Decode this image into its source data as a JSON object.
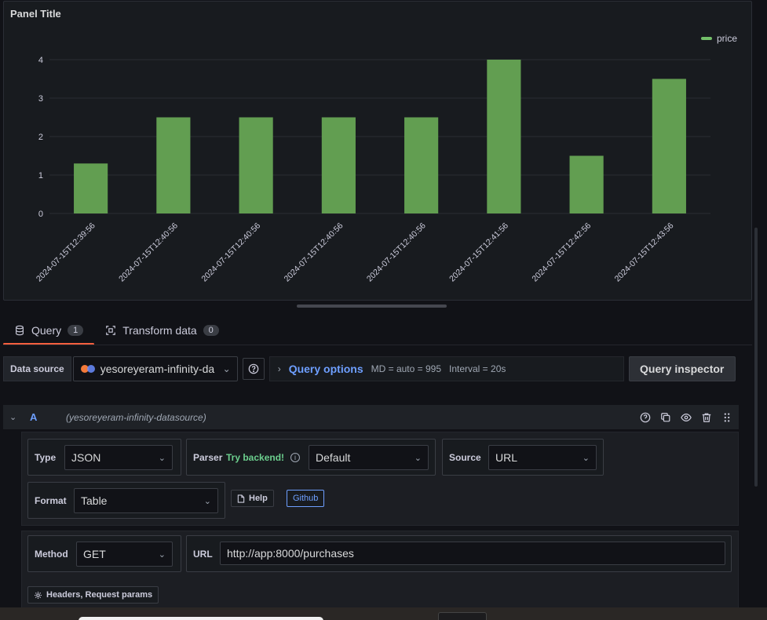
{
  "panel": {
    "title": "Panel Title",
    "legend_label": "price",
    "bar_color": "#629e51"
  },
  "chart_data": {
    "type": "bar",
    "categories": [
      "2024-07-15T12:39:56",
      "2024-07-15T12:40:56",
      "2024-07-15T12:40:56",
      "2024-07-15T12:40:56",
      "2024-07-15T12:40:56",
      "2024-07-15T12:41:56",
      "2024-07-15T12:42:56",
      "2024-07-15T12:43:56"
    ],
    "series": [
      {
        "name": "price",
        "values": [
          1.3,
          2.5,
          2.5,
          2.5,
          2.5,
          4,
          1.5,
          3.5
        ]
      }
    ],
    "yticks": [
      "0",
      "1",
      "2",
      "3",
      "4"
    ],
    "ylim": [
      0,
      4
    ],
    "grid": true,
    "legend_position": "top-right"
  },
  "tabs": [
    {
      "label": "Query",
      "count": "1"
    },
    {
      "label": "Transform data",
      "count": "0"
    }
  ],
  "datasource": {
    "label": "Data source",
    "name": "yesoreyeram-infinity-da",
    "query_options": "Query options",
    "md": "MD = auto = 995",
    "interval": "Interval = 20s",
    "inspector": "Query inspector"
  },
  "query": {
    "ref": "A",
    "datasource": "(yesoreyeram-infinity-datasource)",
    "type_label": "Type",
    "type_value": "JSON",
    "parser_label": "Parser",
    "try_backend": "Try backend!",
    "parser_value": "Default",
    "source_label": "Source",
    "source_value": "URL",
    "format_label": "Format",
    "format_value": "Table",
    "help_label": "Help",
    "github_label": "Github",
    "method_label": "Method",
    "method_value": "GET",
    "url_label": "URL",
    "url_value": "http://app:8000/purchases",
    "headers_label": "Headers, Request params"
  }
}
